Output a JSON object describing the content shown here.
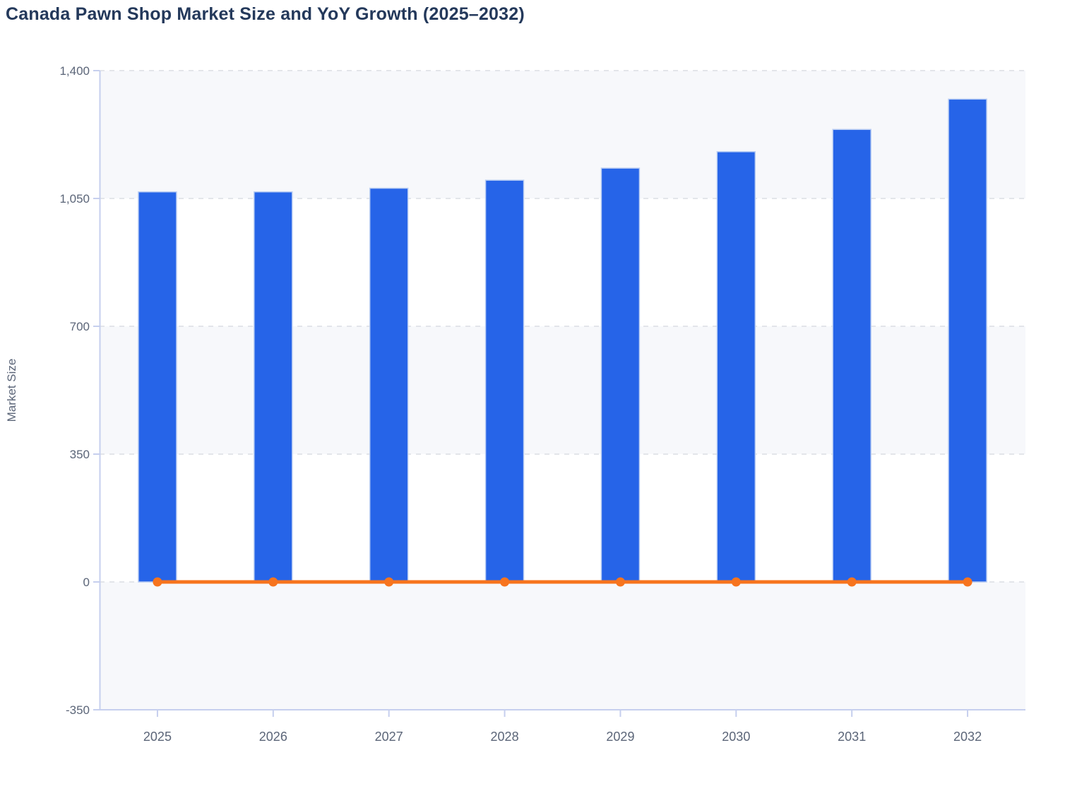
{
  "chart_data": {
    "type": "combo",
    "title": "Canada Pawn Shop Market Size and YoY Growth (2025–2032)",
    "ylabel": "Market Size",
    "xlabel": "",
    "categories": [
      "2025",
      "2026",
      "2027",
      "2028",
      "2029",
      "2030",
      "2031",
      "2032"
    ],
    "series": [
      {
        "name": "Market Size",
        "type": "bar",
        "color": "#2664e8",
        "values": [
          1068,
          1068,
          1078,
          1100,
          1133,
          1178,
          1239,
          1322
        ]
      },
      {
        "name": "YoY Growth",
        "type": "line",
        "color": "#f7741e",
        "values": [
          0,
          0,
          0,
          0,
          0,
          0,
          0,
          0
        ]
      }
    ],
    "ylim": [
      -350,
      1400
    ],
    "yticks": [
      {
        "value": 1400,
        "label": "1,400"
      },
      {
        "value": 1050,
        "label": "1,050"
      },
      {
        "value": 700,
        "label": "700"
      },
      {
        "value": 350,
        "label": "350"
      },
      {
        "value": 0,
        "label": "0"
      },
      {
        "value": -350,
        "label": "-350"
      }
    ],
    "grid": "horizontal-dashed",
    "legend": "none",
    "style": {
      "bar_color": "#2664e8",
      "bar_edge_color": "#b9cdf3",
      "line_color": "#f7741e",
      "band_color": "#f7f8fb",
      "gridline_color": "#e3e5ea",
      "axis_line_color": "#c6cfee",
      "tick_label_color": "#5b6578",
      "axis_name_color": "#5b6578",
      "title_color": "#24395b",
      "background_color": "#ffffff"
    }
  }
}
